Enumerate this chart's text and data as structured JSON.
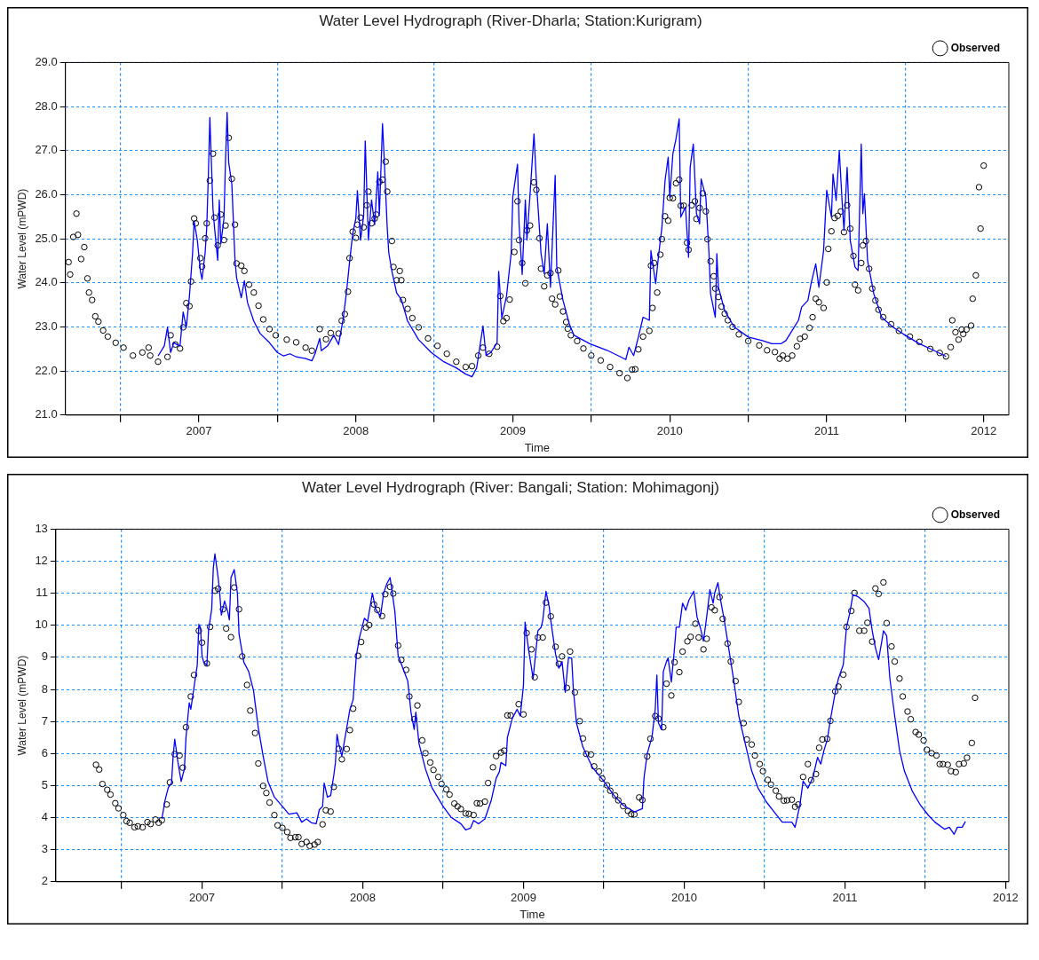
{
  "chart_data": [
    {
      "type": "line",
      "title": "Water Level Hydrograph (River-Dharla; Station:Kurigram)",
      "xlabel": "Time",
      "ylabel": "Water Level (mPWD)",
      "xlim": [
        2006.15,
        2012.16
      ],
      "xticks": [
        {
          "value": 2006.5,
          "label": null
        },
        2007,
        {
          "value": 2007.5,
          "label": null
        },
        2008,
        {
          "value": 2008.5,
          "label": null
        },
        2009,
        {
          "value": 2009.5,
          "label": null
        },
        2010,
        {
          "value": 2010.5,
          "label": null
        },
        2011,
        {
          "value": 2011.5,
          "label": null
        },
        2012
      ],
      "ylim": [
        21,
        29
      ],
      "yticks": [
        {
          "value": 21,
          "label": "21.0"
        },
        {
          "value": 22,
          "label": "22.0"
        },
        {
          "value": 23,
          "label": "23.0"
        },
        {
          "value": 24,
          "label": "24.0"
        },
        {
          "value": 25,
          "label": "25.0"
        },
        {
          "value": 26,
          "label": "26.0"
        },
        {
          "value": 27,
          "label": "27.0"
        },
        {
          "value": 28,
          "label": "28.0"
        },
        {
          "value": 29,
          "label": "29.0"
        }
      ],
      "grid": true,
      "legend": "top right",
      "series": [
        {
          "color": "#0000ff",
          "marker": "none",
          "x": [
            2006.74,
            2006.78,
            2006.8,
            2006.82,
            2006.84,
            2006.88,
            2006.9,
            2006.92,
            2006.94,
            2006.96,
            2006.97,
            2006.99,
            2007.01,
            2007.02,
            2007.04,
            2007.05,
            2007.06,
            2007.07,
            2007.09,
            2007.1,
            2007.12,
            2007.13,
            2007.14,
            2007.16,
            2007.17,
            2007.18,
            2007.19,
            2007.21,
            2007.23,
            2007.24,
            2007.27,
            2007.29,
            2007.31,
            2007.35,
            2007.39,
            2007.45,
            2007.5,
            2007.54,
            2007.58,
            2007.62,
            2007.68,
            2007.72,
            2007.74,
            2007.77,
            2007.78,
            2007.82,
            2007.86,
            2007.89,
            2007.92,
            2007.94,
            2007.96,
            2007.98,
            2008.0,
            2008.01,
            2008.03,
            2008.05,
            2008.06,
            2008.08,
            2008.1,
            2008.12,
            2008.14,
            2008.15,
            2008.17,
            2008.18,
            2008.2,
            2008.21,
            2008.23,
            2008.26,
            2008.29,
            2008.33,
            2008.4,
            2008.48,
            2008.56,
            2008.64,
            2008.7,
            2008.74,
            2008.77,
            2008.81,
            2008.83,
            2008.86,
            2008.9,
            2008.91,
            2008.93,
            2008.96,
            2008.99,
            2009.0,
            2009.03,
            2009.04,
            2009.06,
            2009.08,
            2009.09,
            2009.11,
            2009.135,
            2009.15,
            2009.18,
            2009.2,
            2009.22,
            2009.24,
            2009.27,
            2009.28,
            2009.32,
            2009.36,
            2009.39,
            2009.49,
            2009.6,
            2009.67,
            2009.72,
            2009.74,
            2009.77,
            2009.8,
            2009.83,
            2009.87,
            2009.88,
            2009.91,
            2009.93,
            2009.95,
            2009.97,
            2009.99,
            2010.0,
            2010.02,
            2010.04,
            2010.06,
            2010.07,
            2010.1,
            2010.12,
            2010.13,
            2010.15,
            2010.17,
            2010.19,
            2010.2,
            2010.23,
            2010.25,
            2010.26,
            2010.29,
            2010.3,
            2010.31,
            2010.35,
            2010.41,
            2010.5,
            2010.59,
            2010.65,
            2010.71,
            2010.74,
            2010.78,
            2010.82,
            2010.84,
            2010.88,
            2010.9,
            2010.93,
            2010.95,
            2010.98,
            2011.0,
            2011.03,
            2011.04,
            2011.06,
            2011.08,
            2011.1,
            2011.11,
            2011.13,
            2011.15,
            2011.18,
            2011.2,
            2011.22,
            2011.23,
            2011.24,
            2011.26,
            2011.3,
            2011.35,
            2011.42,
            2011.5,
            2011.59,
            2011.68,
            2011.76
          ],
          "values": [
            22.34,
            22.57,
            22.99,
            22.42,
            22.64,
            22.57,
            23.34,
            22.99,
            23.7,
            24.68,
            25.39,
            24.97,
            24.26,
            24.08,
            24.68,
            25.25,
            26.38,
            27.75,
            25.67,
            25.25,
            24.51,
            25.88,
            24.89,
            25.46,
            26.8,
            27.87,
            26.73,
            26.24,
            24.53,
            24.12,
            23.66,
            24.05,
            23.55,
            23.13,
            22.85,
            22.64,
            22.42,
            22.34,
            22.39,
            22.32,
            22.28,
            22.23,
            22.39,
            22.74,
            22.46,
            22.57,
            22.81,
            22.6,
            23.2,
            23.77,
            24.47,
            25.11,
            25.46,
            26.09,
            24.97,
            25.53,
            27.22,
            24.97,
            25.88,
            25.32,
            26.52,
            25.53,
            27.61,
            26.87,
            25.25,
            24.68,
            24.26,
            23.77,
            23.62,
            23.13,
            22.71,
            22.42,
            22.21,
            22.07,
            21.93,
            21.87,
            22.07,
            23.02,
            22.35,
            22.42,
            22.64,
            24.26,
            23.2,
            23.7,
            24.68,
            25.95,
            26.69,
            25.32,
            24.19,
            25.88,
            24.97,
            26.02,
            27.38,
            26.32,
            24.66,
            24.21,
            25.34,
            23.9,
            26.44,
            24.36,
            23.6,
            23.07,
            22.81,
            22.62,
            22.47,
            22.35,
            22.26,
            22.54,
            22.35,
            22.77,
            23.22,
            23.15,
            24.73,
            23.98,
            24.66,
            25.26,
            26.32,
            26.85,
            25.94,
            26.93,
            27.27,
            27.72,
            25.49,
            25.72,
            24.58,
            26.62,
            27.15,
            25.57,
            25.34,
            26.36,
            25.94,
            24.66,
            23.75,
            23.22,
            24.66,
            23.9,
            23.37,
            23.0,
            22.77,
            22.69,
            22.62,
            22.62,
            22.69,
            22.92,
            23.15,
            23.45,
            23.6,
            23.98,
            24.43,
            23.9,
            24.73,
            26.1,
            25.49,
            26.47,
            25.87,
            27.0,
            25.72,
            25.19,
            26.62,
            24.96,
            24.36,
            24.28,
            27.15,
            25.57,
            26.02,
            24.51,
            23.75,
            23.22,
            23.0,
            22.81,
            22.62,
            22.47,
            22.33
          ]
        },
        {
          "type": "scatter",
          "name": "Observed",
          "color": "#000000",
          "marker": "circle",
          "x": [
            2006.17,
            2006.18,
            2006.2,
            2006.22,
            2006.23,
            2006.25,
            2006.27,
            2006.29,
            2006.3,
            2006.32,
            2006.34,
            2006.36,
            2006.39,
            2006.42,
            2006.47,
            2006.52,
            2006.58,
            2006.64,
            2006.68,
            2006.69,
            2006.74,
            2006.8,
            2006.82,
            2006.85,
            2006.88,
            2006.9,
            2006.92,
            2006.94,
            2006.95,
            2006.97,
            2006.98,
            2007.01,
            2007.02,
            2007.04,
            2007.05,
            2007.07,
            2007.09,
            2007.1,
            2007.12,
            2007.14,
            2007.16,
            2007.17,
            2007.19,
            2007.21,
            2007.23,
            2007.24,
            2007.27,
            2007.29,
            2007.32,
            2007.35,
            2007.38,
            2007.41,
            2007.45,
            2007.49,
            2007.56,
            2007.62,
            2007.68,
            2007.72,
            2007.77,
            2007.81,
            2007.84,
            2007.89,
            2007.91,
            2007.93,
            2007.95,
            2007.96,
            2007.98,
            2008.0,
            2008.01,
            2008.03,
            2008.05,
            2008.07,
            2008.08,
            2008.1,
            2008.12,
            2008.13,
            2008.15,
            2008.17,
            2008.19,
            2008.2,
            2008.23,
            2008.24,
            2008.26,
            2008.28,
            2008.29,
            2008.3,
            2008.33,
            2008.36,
            2008.4,
            2008.46,
            2008.52,
            2008.58,
            2008.64,
            2008.7,
            2008.74,
            2008.78,
            2008.81,
            2008.85,
            2008.9,
            2008.92,
            2008.94,
            2008.96,
            2008.98,
            2009.01,
            2009.03,
            2009.04,
            2009.06,
            2009.08,
            2009.09,
            2009.11,
            2009.135,
            2009.15,
            2009.17,
            2009.18,
            2009.2,
            2009.22,
            2009.24,
            2009.25,
            2009.27,
            2009.29,
            2009.3,
            2009.32,
            2009.34,
            2009.35,
            2009.37,
            2009.41,
            2009.45,
            2009.5,
            2009.56,
            2009.62,
            2009.68,
            2009.73,
            2009.76,
            2009.78,
            2009.8,
            2009.83,
            2009.87,
            2009.88,
            2009.89,
            2009.9,
            2009.92,
            2009.94,
            2009.95,
            2009.97,
            2009.99,
            2010.0,
            2010.02,
            2010.04,
            2010.06,
            2010.07,
            2010.09,
            2010.11,
            2010.12,
            2010.14,
            2010.16,
            2010.17,
            2010.19,
            2010.21,
            2010.23,
            2010.24,
            2010.26,
            2010.28,
            2010.29,
            2010.31,
            2010.33,
            2010.35,
            2010.37,
            2010.4,
            2010.44,
            2010.5,
            2010.57,
            2010.62,
            2010.67,
            2010.7,
            2010.72,
            2010.75,
            2010.78,
            2010.81,
            2010.83,
            2010.86,
            2010.89,
            2010.91,
            2010.93,
            2010.95,
            2010.98,
            2011.0,
            2011.01,
            2011.03,
            2011.05,
            2011.07,
            2011.09,
            2011.11,
            2011.13,
            2011.15,
            2011.17,
            2011.18,
            2011.2,
            2011.22,
            2011.23,
            2011.25,
            2011.27,
            2011.29,
            2011.31,
            2011.33,
            2011.36,
            2011.41,
            2011.46,
            2011.53,
            2011.59,
            2011.66,
            2011.72,
            2011.76,
            2011.79,
            2011.8,
            2011.82,
            2011.84,
            2011.86,
            2011.87,
            2011.89,
            2011.92,
            2011.93,
            2011.95,
            2011.97,
            2011.98,
            2012.0
          ],
          "values": [
            24.47,
            24.19,
            25.04,
            25.57,
            25.09,
            24.54,
            24.81,
            24.1,
            23.78,
            23.61,
            23.24,
            23.12,
            22.92,
            22.78,
            22.64,
            22.53,
            22.35,
            22.42,
            22.53,
            22.35,
            22.21,
            22.32,
            22.81,
            22.6,
            22.51,
            22.99,
            23.54,
            23.47,
            24.03,
            25.46,
            25.35,
            24.56,
            24.37,
            25.01,
            25.35,
            26.32,
            26.93,
            25.48,
            24.85,
            25.55,
            24.97,
            25.3,
            27.29,
            26.36,
            25.32,
            24.44,
            24.39,
            24.27,
            23.96,
            23.78,
            23.48,
            23.17,
            22.95,
            22.81,
            22.71,
            22.65,
            22.53,
            22.46,
            22.95,
            22.72,
            22.86,
            22.85,
            23.14,
            23.29,
            23.8,
            24.56,
            25.16,
            25.02,
            25.32,
            25.48,
            25.26,
            25.76,
            26.07,
            25.35,
            25.46,
            25.55,
            26.29,
            26.34,
            26.75,
            26.07,
            24.95,
            24.36,
            24.06,
            24.27,
            24.06,
            23.61,
            23.41,
            23.2,
            22.99,
            22.74,
            22.57,
            22.39,
            22.21,
            22.09,
            22.11,
            22.35,
            22.53,
            22.39,
            22.55,
            23.7,
            23.13,
            23.2,
            23.62,
            24.7,
            25.85,
            24.97,
            24.45,
            23.99,
            25.19,
            25.3,
            26.28,
            26.11,
            25.01,
            24.32,
            23.92,
            24.17,
            24.22,
            23.64,
            23.51,
            24.28,
            23.69,
            23.35,
            23.11,
            22.96,
            22.81,
            22.68,
            22.51,
            22.35,
            22.24,
            22.09,
            21.95,
            21.84,
            22.03,
            22.04,
            22.49,
            22.78,
            22.91,
            24.39,
            23.43,
            24.45,
            23.78,
            24.64,
            24.99,
            25.51,
            25.41,
            25.93,
            25.92,
            26.26,
            26.34,
            25.75,
            25.75,
            24.91,
            24.75,
            25.76,
            25.85,
            25.45,
            25.7,
            26.03,
            25.62,
            24.99,
            24.49,
            24.15,
            23.87,
            23.68,
            23.46,
            23.3,
            23.15,
            23.0,
            22.83,
            22.68,
            22.58,
            22.47,
            22.43,
            22.28,
            22.35,
            22.28,
            22.35,
            22.56,
            22.73,
            22.78,
            22.98,
            23.22,
            23.64,
            23.56,
            23.43,
            24.01,
            24.77,
            25.17,
            25.47,
            25.52,
            25.62,
            25.15,
            25.76,
            25.23,
            24.61,
            23.96,
            23.83,
            24.45,
            24.85,
            24.95,
            24.32,
            23.87,
            23.6,
            23.39,
            23.22,
            23.06,
            22.91,
            22.78,
            22.66,
            22.5,
            22.41,
            22.33,
            22.54,
            23.15,
            22.88,
            22.71,
            22.94,
            22.84,
            22.94,
            23.03,
            23.64,
            24.17,
            26.17,
            25.23,
            26.66
          ]
        }
      ]
    },
    {
      "type": "line",
      "title": "Water Level Hydrograph (River: Bangali; Station: Mohimagonj)",
      "xlabel": "Time",
      "ylabel": "Water Level (mPWD)",
      "xlim": [
        2006.09,
        2012.02
      ],
      "xticks": [
        {
          "value": 2006.5,
          "label": null
        },
        2007,
        {
          "value": 2007.5,
          "label": null
        },
        2008,
        {
          "value": 2008.5,
          "label": null
        },
        2009,
        {
          "value": 2009.5,
          "label": null
        },
        2010,
        {
          "value": 2010.5,
          "label": null
        },
        2011,
        {
          "value": 2011.5,
          "label": null
        },
        2012
      ],
      "ylim": [
        2,
        13
      ],
      "yticks": [
        2,
        3,
        4,
        5,
        6,
        7,
        8,
        9,
        10,
        11,
        12,
        13
      ],
      "grid": true,
      "legend": "top right",
      "series": [
        {
          "color": "#0000ff",
          "marker": "none",
          "x": [
            2006.75,
            2006.77,
            2006.79,
            2006.81,
            2006.82,
            2006.83,
            2006.85,
            2006.87,
            2006.89,
            2006.9,
            2006.92,
            2006.93,
            2006.95,
            2006.97,
            2006.98,
            2006.99,
            2007.0,
            2007.01,
            2007.03,
            2007.04,
            2007.06,
            2007.07,
            2007.08,
            2007.1,
            2007.11,
            2007.12,
            2007.14,
            2007.16,
            2007.17,
            2007.18,
            2007.2,
            2007.22,
            2007.23,
            2007.26,
            2007.29,
            2007.32,
            2007.35,
            2007.38,
            2007.41,
            2007.45,
            2007.5,
            2007.54,
            2007.59,
            2007.62,
            2007.65,
            2007.68,
            2007.71,
            2007.73,
            2007.75,
            2007.76,
            2007.78,
            2007.8,
            2007.82,
            2007.83,
            2007.84,
            2007.85,
            2007.87,
            2007.89,
            2007.92,
            2007.94,
            2007.96,
            2007.98,
            2008.01,
            2008.03,
            2008.06,
            2008.08,
            2008.11,
            2008.13,
            2008.15,
            2008.17,
            2008.2,
            2008.22,
            2008.25,
            2008.28,
            2008.3,
            2008.32,
            2008.33,
            2008.35,
            2008.39,
            2008.43,
            2008.5,
            2008.55,
            2008.61,
            2008.64,
            2008.67,
            2008.69,
            2008.72,
            2008.76,
            2008.8,
            2008.83,
            2008.85,
            2008.86,
            2008.89,
            2008.9,
            2008.93,
            2008.96,
            2008.98,
            2009.0,
            2009.01,
            2009.03,
            2009.06,
            2009.09,
            2009.11,
            2009.12,
            2009.14,
            2009.16,
            2009.17,
            2009.2,
            2009.22,
            2009.24,
            2009.26,
            2009.28,
            2009.3,
            2009.31,
            2009.33,
            2009.37,
            2009.43,
            2009.5,
            2009.56,
            2009.62,
            2009.69,
            2009.74,
            2009.75,
            2009.77,
            2009.8,
            2009.82,
            2009.83,
            2009.84,
            2009.86,
            2009.87,
            2009.89,
            2009.9,
            2009.92,
            2009.94,
            2009.95,
            2009.97,
            2009.99,
            2010.01,
            2010.03,
            2010.06,
            2010.08,
            2010.1,
            2010.12,
            2010.14,
            2010.16,
            2010.18,
            2010.19,
            2010.21,
            2010.23,
            2010.25,
            2010.28,
            2010.31,
            2010.34,
            2010.38,
            2010.42,
            2010.46,
            2010.51,
            2010.56,
            2010.61,
            2010.67,
            2010.69,
            2010.72,
            2010.74,
            2010.77,
            2010.8,
            2010.83,
            2010.85,
            2010.87,
            2010.89,
            2010.91,
            2010.94,
            2010.96,
            2010.99,
            2011.01,
            2011.03,
            2011.05,
            2011.08,
            2011.12,
            2011.15,
            2011.17,
            2011.19,
            2011.21,
            2011.23,
            2011.24,
            2011.26,
            2011.28,
            2011.31,
            2011.34,
            2011.37,
            2011.42,
            2011.47,
            2011.52,
            2011.56,
            2011.62,
            2011.65,
            2011.68,
            2011.7,
            2011.73,
            2011.75
          ],
          "values": [
            3.96,
            4.55,
            4.94,
            5.08,
            5.92,
            6.45,
            5.72,
            5.13,
            5.52,
            6.5,
            7.58,
            7.38,
            8.07,
            8.75,
            10.03,
            9.93,
            9.05,
            8.85,
            8.75,
            9.83,
            10.51,
            11.79,
            12.23,
            11.49,
            11.0,
            10.32,
            10.76,
            10.42,
            10.17,
            11.49,
            11.74,
            11.0,
            9.73,
            8.85,
            8.56,
            7.97,
            6.8,
            5.92,
            5.13,
            4.64,
            4.35,
            4.11,
            4.15,
            3.86,
            3.96,
            3.84,
            3.81,
            4.25,
            4.35,
            5.08,
            4.64,
            4.69,
            5.33,
            5.72,
            6.6,
            6.31,
            5.92,
            6.5,
            7.38,
            7.68,
            9.05,
            9.63,
            10.22,
            10.12,
            11.0,
            10.51,
            10.27,
            11.0,
            11.3,
            11.49,
            10.42,
            9.05,
            8.66,
            8.26,
            7.29,
            6.75,
            7.29,
            6.31,
            5.52,
            4.94,
            4.35,
            4.01,
            3.81,
            3.62,
            3.67,
            3.91,
            3.81,
            3.96,
            4.55,
            5.23,
            5.43,
            5.72,
            5.62,
            6.5,
            7.09,
            7.38,
            7.17,
            8.13,
            10.1,
            9.3,
            8.34,
            9.83,
            9.94,
            10.15,
            11.06,
            10.58,
            10.15,
            9.09,
            8.66,
            8.87,
            7.91,
            8.98,
            8.98,
            8.02,
            6.95,
            6.2,
            5.56,
            5.14,
            4.71,
            4.39,
            4.18,
            4.28,
            5.24,
            5.99,
            6.53,
            7.38,
            8.45,
            6.95,
            6.74,
            8.55,
            8.87,
            8.98,
            8.23,
            9.3,
            9.94,
            9.94,
            10.69,
            10.47,
            10.79,
            11.06,
            10.26,
            9.94,
            9.51,
            10.26,
            11.11,
            10.69,
            11.01,
            11.33,
            10.69,
            10.15,
            9.19,
            8.23,
            7.17,
            6.31,
            5.46,
            4.92,
            4.5,
            4.18,
            3.86,
            3.86,
            3.7,
            4.39,
            5.14,
            4.92,
            5.24,
            5.88,
            5.67,
            6.1,
            6.42,
            7.06,
            7.91,
            8.34,
            8.77,
            9.94,
            10.37,
            10.95,
            10.9,
            10.74,
            10.53,
            9.83,
            9.3,
            8.93,
            9.51,
            9.83,
            9.67,
            8.34,
            7.17,
            6.1,
            5.46,
            4.82,
            4.39,
            4.07,
            3.86,
            3.64,
            3.7,
            3.48,
            3.7,
            3.7,
            3.88
          ]
        },
        {
          "type": "scatter",
          "name": "Observed",
          "color": "#000000",
          "marker": "circle",
          "x": [
            2006.34,
            2006.36,
            2006.38,
            2006.41,
            2006.43,
            2006.46,
            2006.48,
            2006.51,
            2006.53,
            2006.55,
            2006.58,
            2006.6,
            2006.63,
            2006.66,
            2006.68,
            2006.71,
            2006.73,
            2006.75,
            2006.78,
            2006.8,
            2006.83,
            2006.86,
            2006.88,
            2006.9,
            2006.93,
            2006.95,
            2006.98,
            2007.0,
            2007.03,
            2007.05,
            2007.08,
            2007.1,
            2007.13,
            2007.15,
            2007.18,
            2007.2,
            2007.23,
            2007.25,
            2007.28,
            2007.3,
            2007.33,
            2007.35,
            2007.38,
            2007.4,
            2007.42,
            2007.45,
            2007.47,
            2007.5,
            2007.53,
            2007.55,
            2007.58,
            2007.6,
            2007.62,
            2007.65,
            2007.67,
            2007.7,
            2007.72,
            2007.75,
            2007.77,
            2007.8,
            2007.82,
            2007.85,
            2007.87,
            2007.9,
            2007.92,
            2007.94,
            2007.97,
            2007.99,
            2008.02,
            2008.04,
            2008.07,
            2008.09,
            2008.12,
            2008.14,
            2008.17,
            2008.19,
            2008.22,
            2008.24,
            2008.27,
            2008.29,
            2008.32,
            2008.34,
            2008.37,
            2008.39,
            2008.42,
            2008.44,
            2008.47,
            2008.49,
            2008.52,
            2008.54,
            2008.57,
            2008.59,
            2008.61,
            2008.64,
            2008.66,
            2008.69,
            2008.71,
            2008.73,
            2008.76,
            2008.78,
            2008.81,
            2008.83,
            2008.86,
            2008.88,
            2008.9,
            2008.92,
            2008.97,
            2009.0,
            2009.02,
            2009.05,
            2009.07,
            2009.09,
            2009.12,
            2009.14,
            2009.17,
            2009.2,
            2009.22,
            2009.24,
            2009.27,
            2009.29,
            2009.32,
            2009.35,
            2009.37,
            2009.39,
            2009.42,
            2009.44,
            2009.47,
            2009.49,
            2009.52,
            2009.54,
            2009.57,
            2009.59,
            2009.62,
            2009.65,
            2009.67,
            2009.69,
            2009.72,
            2009.74,
            2009.77,
            2009.79,
            2009.82,
            2009.84,
            2009.87,
            2009.89,
            2009.92,
            2009.94,
            2009.97,
            2009.99,
            2010.02,
            2010.04,
            2010.07,
            2010.09,
            2010.12,
            2010.14,
            2010.17,
            2010.19,
            2010.22,
            2010.24,
            2010.27,
            2010.29,
            2010.32,
            2010.34,
            2010.37,
            2010.39,
            2010.42,
            2010.44,
            2010.47,
            2010.49,
            2010.52,
            2010.54,
            2010.57,
            2010.59,
            2010.62,
            2010.64,
            2010.67,
            2010.69,
            2010.71,
            2010.74,
            2010.77,
            2010.79,
            2010.82,
            2010.84,
            2010.86,
            2010.89,
            2010.91,
            2010.94,
            2010.96,
            2010.99,
            2011.01,
            2011.04,
            2011.06,
            2011.09,
            2011.12,
            2011.14,
            2011.17,
            2011.19,
            2011.21,
            2011.24,
            2011.26,
            2011.29,
            2011.31,
            2011.34,
            2011.36,
            2011.39,
            2011.41,
            2011.44,
            2011.46,
            2011.49,
            2011.51,
            2011.54,
            2011.57,
            2011.59,
            2011.61,
            2011.64,
            2011.66,
            2011.69,
            2011.71,
            2011.74,
            2011.76,
            2011.79,
            2011.81
          ],
          "values": [
            5.65,
            5.5,
            5.05,
            4.87,
            4.72,
            4.45,
            4.29,
            4.08,
            3.89,
            3.84,
            3.7,
            3.73,
            3.7,
            3.86,
            3.8,
            3.94,
            3.84,
            3.92,
            4.41,
            5.1,
            5.98,
            5.94,
            5.56,
            6.82,
            7.78,
            8.45,
            9.83,
            9.46,
            8.81,
            9.95,
            11.08,
            11.14,
            10.5,
            9.9,
            9.63,
            11.18,
            10.5,
            9.03,
            8.14,
            7.34,
            6.64,
            5.69,
            4.99,
            4.77,
            4.47,
            4.08,
            3.76,
            3.68,
            3.55,
            3.37,
            3.39,
            3.39,
            3.18,
            3.24,
            3.12,
            3.16,
            3.24,
            3.79,
            4.23,
            4.19,
            4.96,
            6.15,
            5.82,
            6.14,
            6.73,
            7.4,
            9.05,
            9.48,
            9.93,
            10.01,
            10.65,
            10.48,
            10.29,
            10.97,
            11.2,
            10.99,
            9.37,
            8.92,
            8.61,
            7.78,
            7.07,
            7.5,
            6.41,
            6.01,
            5.72,
            5.49,
            5.27,
            5.05,
            4.88,
            4.72,
            4.44,
            4.35,
            4.27,
            4.13,
            4.12,
            4.08,
            4.45,
            4.44,
            4.5,
            5.08,
            5.57,
            5.92,
            6.03,
            6.09,
            7.19,
            7.19,
            7.54,
            7.22,
            9.76,
            9.25,
            8.38,
            9.62,
            9.62,
            10.71,
            10.28,
            9.33,
            8.8,
            9.03,
            8.05,
            9.18,
            7.91,
            7.01,
            6.47,
            5.99,
            5.97,
            5.6,
            5.44,
            5.22,
            5.01,
            4.84,
            4.69,
            4.54,
            4.36,
            4.21,
            4.11,
            4.1,
            4.63,
            4.55,
            5.91,
            6.46,
            7.17,
            7.09,
            6.82,
            8.18,
            7.81,
            8.85,
            8.54,
            9.18,
            9.5,
            9.64,
            10.05,
            9.62,
            9.25,
            9.58,
            10.56,
            10.47,
            10.88,
            10.2,
            9.43,
            8.87,
            8.26,
            7.61,
            6.95,
            6.44,
            6.28,
            5.94,
            5.67,
            5.45,
            5.18,
            5.03,
            4.84,
            4.66,
            4.53,
            4.54,
            4.56,
            4.34,
            4.41,
            5.27,
            5.67,
            5.17,
            5.36,
            6.18,
            6.44,
            6.46,
            7.02,
            7.94,
            8.09,
            8.46,
            9.95,
            10.45,
            11.01,
            9.83,
            9.83,
            10.08,
            9.49,
            11.15,
            10.98,
            11.34,
            10.07,
            9.34,
            8.87,
            8.34,
            7.78,
            7.31,
            7.07,
            6.67,
            6.59,
            6.41,
            6.12,
            6.01,
            5.94,
            5.67,
            5.67,
            5.65,
            5.45,
            5.42,
            5.67,
            5.69,
            5.87,
            6.33,
            7.74
          ]
        }
      ]
    }
  ]
}
